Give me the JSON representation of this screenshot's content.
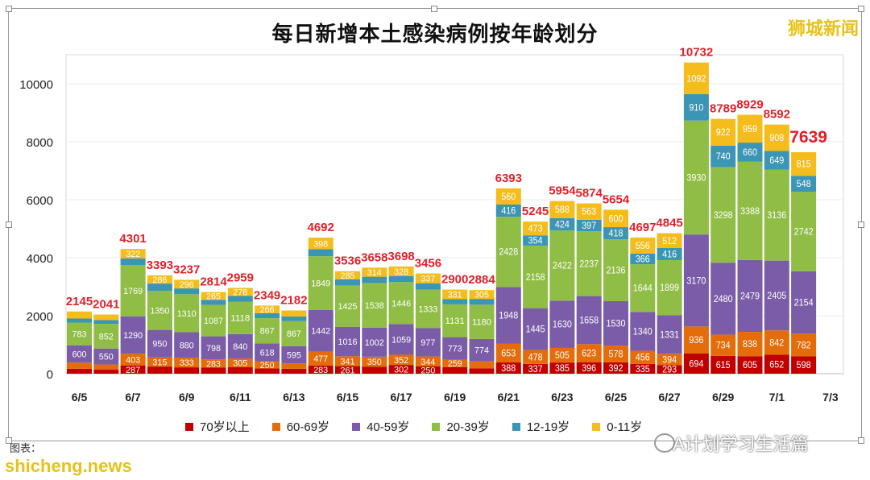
{
  "watermarks": {
    "top_right": "狮城新闻",
    "bottom_right": "A计划学习生活篇",
    "bottom_left": "shicheng.news",
    "credit": "图表："
  },
  "chart_data": {
    "type": "bar",
    "stacked": true,
    "title": "每日新增本土感染病例按年龄划分",
    "xlabel": "",
    "ylabel": "",
    "ylim": [
      0,
      11000
    ],
    "yticks": [
      0,
      2000,
      4000,
      6000,
      8000,
      10000
    ],
    "grid": true,
    "legend_position": "bottom",
    "categories": [
      "6/5",
      "6/6",
      "6/7",
      "6/8",
      "6/9",
      "6/10",
      "6/11",
      "6/12",
      "6/13",
      "6/14",
      "6/15",
      "6/16",
      "6/17",
      "6/18",
      "6/19",
      "6/20",
      "6/21",
      "6/22",
      "6/23",
      "6/24",
      "6/25",
      "6/26",
      "6/27",
      "6/28",
      "6/29",
      "6/30",
      "7/1",
      "7/2"
    ],
    "xtick_labels": [
      "6/5",
      "6/7",
      "6/9",
      "6/11",
      "6/13",
      "6/15",
      "6/17",
      "6/19",
      "6/21",
      "6/23",
      "6/25",
      "6/27",
      "6/29",
      "7/1",
      "7/3"
    ],
    "totals": [
      2145,
      2041,
      4301,
      3393,
      3237,
      2814,
      2959,
      2349,
      2182,
      4692,
      3536,
      3658,
      3698,
      3456,
      2900,
      2884,
      6393,
      5245,
      5954,
      5874,
      5654,
      4697,
      4845,
      10732,
      8789,
      8929,
      8592,
      7639
    ],
    "series": [
      {
        "name": "70岁以上",
        "color": "#c00000",
        "values": [
          170,
          138,
          287,
          246,
          219,
          208,
          222,
          179,
          172,
          283,
          261,
          237,
          302,
          250,
          229,
          186,
          388,
          337,
          385,
          396,
          392,
          335,
          293,
          694,
          615,
          605,
          652,
          598
        ]
      },
      {
        "name": "60-69岁",
        "color": "#e46c0a",
        "values": [
          210,
          180,
          403,
          315,
          333,
          283,
          305,
          250,
          182,
          477,
          341,
          350,
          352,
          344,
          259,
          240,
          653,
          478,
          505,
          623,
          578,
          456,
          394,
          936,
          734,
          838,
          842,
          782
        ]
      },
      {
        "name": "40-59岁",
        "color": "#7a5ca8",
        "values": [
          600,
          550,
          1290,
          950,
          880,
          798,
          840,
          618,
          595,
          1442,
          1016,
          1002,
          1059,
          977,
          773,
          774,
          1948,
          1445,
          1630,
          1658,
          1530,
          1340,
          1331,
          3170,
          2480,
          2479,
          2405,
          2154
        ]
      },
      {
        "name": "20-39岁",
        "color": "#8fbd45",
        "values": [
          783,
          852,
          1769,
          1350,
          1310,
          1087,
          1118,
          867,
          867,
          1849,
          1425,
          1538,
          1446,
          1333,
          1131,
          1180,
          2428,
          2158,
          2422,
          2237,
          2136,
          1644,
          1899,
          3930,
          3298,
          3388,
          3136,
          2742
        ]
      },
      {
        "name": "12-19岁",
        "color": "#3b95b4",
        "values": [
          140,
          130,
          230,
          246,
          199,
          173,
          196,
          169,
          155,
          243,
          208,
          217,
          211,
          215,
          177,
          199,
          416,
          354,
          424,
          397,
          418,
          366,
          416,
          910,
          740,
          660,
          649,
          548
        ]
      },
      {
        "name": "0-11岁",
        "color": "#f4bd1c",
        "values": [
          242,
          191,
          322,
          286,
          296,
          265,
          278,
          266,
          211,
          398,
          285,
          314,
          328,
          337,
          331,
          305,
          560,
          473,
          588,
          563,
          600,
          556,
          512,
          1092,
          922,
          959,
          908,
          815
        ]
      }
    ],
    "total_label_color": "#e0202a"
  }
}
